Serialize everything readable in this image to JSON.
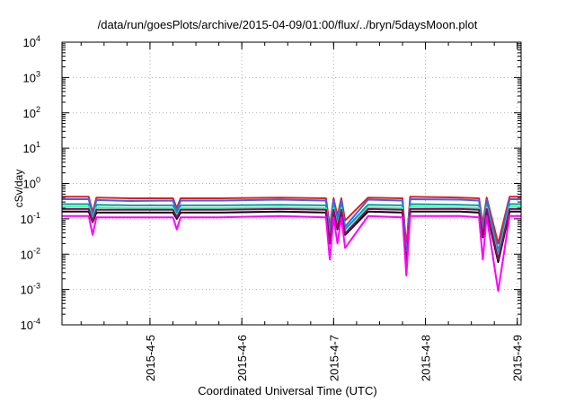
{
  "chart_data": {
    "type": "line",
    "title": "/data/run/goesPlots/archive/2015-04-09/01:00/flux/../bryn/5daysMoon.plot",
    "xlabel": "Coordinated Universal Time (UTC)",
    "ylabel": "cSv/day",
    "yscale": "log",
    "ylim": [
      0.0001,
      10000
    ],
    "xlim": [
      "2015-04-04T01:00",
      "2015-04-09T01:00"
    ],
    "grid": true,
    "legend": "none",
    "y_ticks": [
      {
        "base": "10",
        "exp": "-4",
        "value": 0.0001
      },
      {
        "base": "10",
        "exp": "-3",
        "value": 0.001
      },
      {
        "base": "10",
        "exp": "-2",
        "value": 0.01
      },
      {
        "base": "10",
        "exp": "-1",
        "value": 0.1
      },
      {
        "base": "10",
        "exp": "0",
        "value": 1
      },
      {
        "base": "10",
        "exp": "1",
        "value": 10
      },
      {
        "base": "10",
        "exp": "2",
        "value": 100
      },
      {
        "base": "10",
        "exp": "3",
        "value": 1000
      },
      {
        "base": "10",
        "exp": "4",
        "value": 10000
      }
    ],
    "x_ticks": [
      {
        "label": "2015-4-5",
        "time": "2015-04-05T00:00"
      },
      {
        "label": "2015-4-6",
        "time": "2015-04-06T00:00"
      },
      {
        "label": "2015-4-7",
        "time": "2015-04-07T00:00"
      },
      {
        "label": "2015-4-8",
        "time": "2015-04-08T00:00"
      },
      {
        "label": "2015-4-9",
        "time": "2015-04-09T00:00"
      }
    ],
    "x": [
      "2015-04-04T01:00",
      "2015-04-04T08:00",
      "2015-04-04T09:00",
      "2015-04-04T10:00",
      "2015-04-04T19:00",
      "2015-04-05T06:00",
      "2015-04-05T07:00",
      "2015-04-05T08:00",
      "2015-04-05T18:00",
      "2015-04-06T10:00",
      "2015-04-06T22:00",
      "2015-04-06T23:00",
      "2015-04-07T00:00",
      "2015-04-07T01:00",
      "2015-04-07T02:00",
      "2015-04-07T03:00",
      "2015-04-07T09:00",
      "2015-04-07T18:00",
      "2015-04-07T19:00",
      "2015-04-07T20:00",
      "2015-04-08T09:00",
      "2015-04-08T14:00",
      "2015-04-08T15:00",
      "2015-04-08T16:00",
      "2015-04-08T19:00",
      "2015-04-08T22:00",
      "2015-04-09T01:00"
    ],
    "series": [
      {
        "color": "#e41a1c",
        "values": [
          0.42,
          0.42,
          0.15,
          0.4,
          0.38,
          0.38,
          0.2,
          0.38,
          0.38,
          0.4,
          0.38,
          0.06,
          0.38,
          0.12,
          0.38,
          0.09,
          0.4,
          0.38,
          0.015,
          0.42,
          0.4,
          0.38,
          0.07,
          0.4,
          0.02,
          0.42,
          0.42
        ]
      },
      {
        "color": "#3366ff",
        "values": [
          0.36,
          0.36,
          0.12,
          0.34,
          0.32,
          0.33,
          0.16,
          0.33,
          0.33,
          0.35,
          0.33,
          0.04,
          0.33,
          0.09,
          0.33,
          0.06,
          0.35,
          0.33,
          0.008,
          0.36,
          0.35,
          0.33,
          0.05,
          0.34,
          0.012,
          0.36,
          0.36
        ]
      },
      {
        "color": "#00a0a0",
        "values": [
          0.26,
          0.26,
          0.1,
          0.25,
          0.24,
          0.24,
          0.14,
          0.24,
          0.24,
          0.25,
          0.24,
          0.03,
          0.24,
          0.07,
          0.24,
          0.05,
          0.25,
          0.24,
          0.006,
          0.26,
          0.25,
          0.24,
          0.04,
          0.25,
          0.01,
          0.26,
          0.26
        ]
      },
      {
        "color": "#33ff99",
        "values": [
          0.22,
          0.22,
          0.09,
          0.21,
          0.2,
          0.2,
          0.12,
          0.2,
          0.2,
          0.21,
          0.2,
          0.025,
          0.2,
          0.06,
          0.2,
          0.04,
          0.21,
          0.2,
          0.005,
          0.22,
          0.21,
          0.2,
          0.035,
          0.21,
          0.008,
          0.22,
          0.22
        ]
      },
      {
        "color": "#000000",
        "values": [
          0.16,
          0.16,
          0.08,
          0.15,
          0.15,
          0.15,
          0.1,
          0.15,
          0.15,
          0.16,
          0.15,
          0.02,
          0.15,
          0.05,
          0.15,
          0.035,
          0.16,
          0.15,
          0.004,
          0.16,
          0.16,
          0.15,
          0.03,
          0.16,
          0.006,
          0.16,
          0.16
        ]
      },
      {
        "color": "#990066",
        "values": [
          0.19,
          0.19,
          0.085,
          0.18,
          0.18,
          0.18,
          0.11,
          0.18,
          0.18,
          0.19,
          0.18,
          0.022,
          0.18,
          0.055,
          0.18,
          0.038,
          0.19,
          0.18,
          0.0045,
          0.19,
          0.19,
          0.18,
          0.032,
          0.19,
          0.007,
          0.19,
          0.19
        ]
      },
      {
        "color": "#ff00ff",
        "values": [
          0.12,
          0.12,
          0.035,
          0.11,
          0.11,
          0.11,
          0.05,
          0.11,
          0.11,
          0.12,
          0.11,
          0.007,
          0.11,
          0.02,
          0.11,
          0.015,
          0.12,
          0.11,
          0.0025,
          0.12,
          0.12,
          0.11,
          0.007,
          0.12,
          0.0009,
          0.12,
          0.12
        ]
      }
    ]
  }
}
